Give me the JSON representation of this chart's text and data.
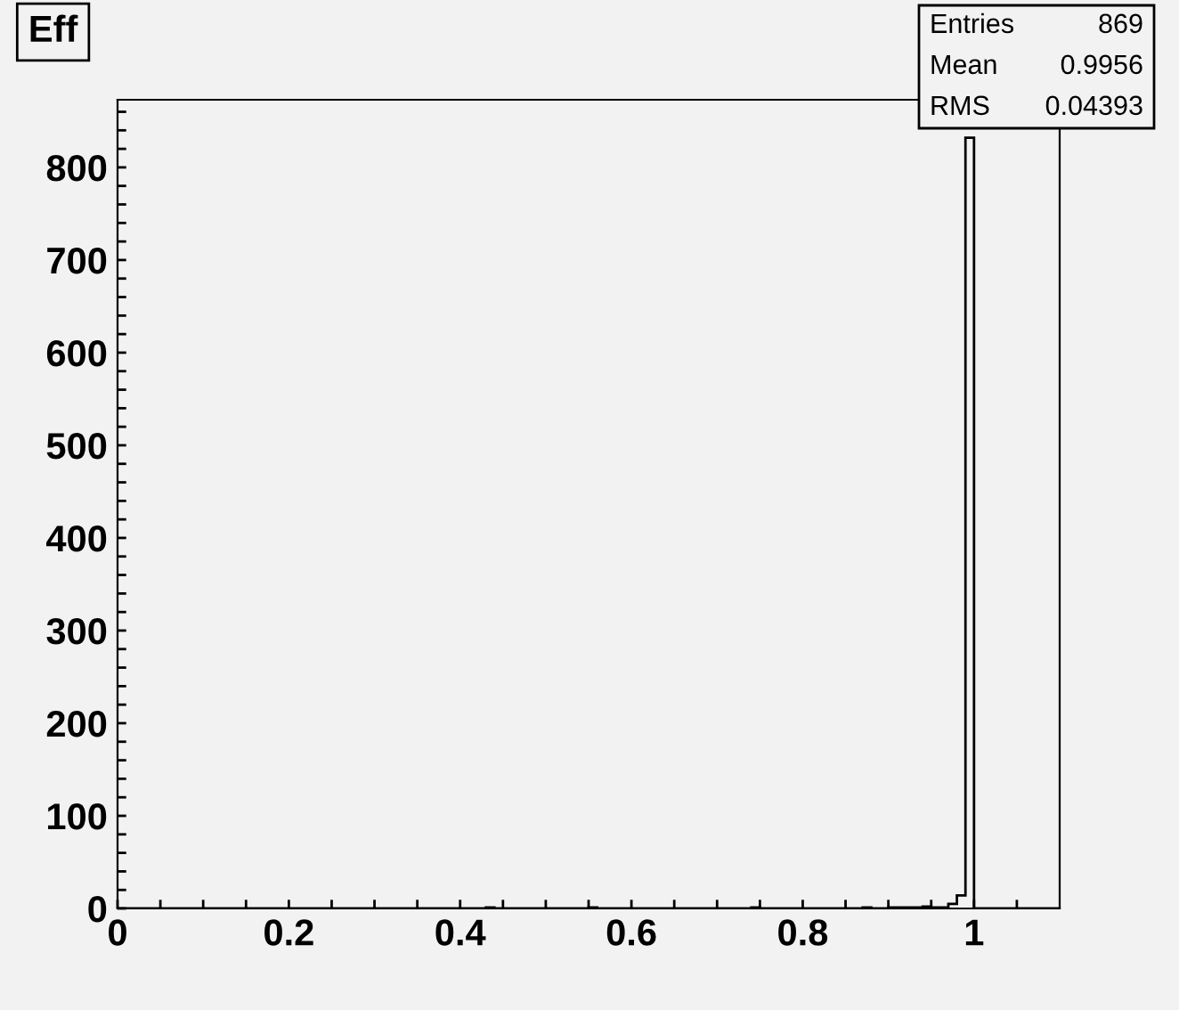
{
  "chart_data": {
    "type": "histogram",
    "title": "Eff",
    "bins": [
      0,
      0.01,
      0.02,
      0.03,
      0.04,
      0.05,
      0.06,
      0.07,
      0.08,
      0.09,
      0.1,
      0.11,
      0.12,
      0.13,
      0.14,
      0.15,
      0.16,
      0.17,
      0.18,
      0.19,
      0.2,
      0.21,
      0.22,
      0.23,
      0.24,
      0.25,
      0.26,
      0.27,
      0.28,
      0.29,
      0.3,
      0.31,
      0.32,
      0.33,
      0.34,
      0.35,
      0.36,
      0.37,
      0.38,
      0.39,
      0.4,
      0.41,
      0.42,
      0.43,
      0.44,
      0.45,
      0.46,
      0.47,
      0.48,
      0.49,
      0.5,
      0.51,
      0.52,
      0.53,
      0.54,
      0.55,
      0.56,
      0.57,
      0.58,
      0.59,
      0.6,
      0.61,
      0.62,
      0.63,
      0.64,
      0.65,
      0.66,
      0.67,
      0.68,
      0.69,
      0.7,
      0.71,
      0.72,
      0.73,
      0.74,
      0.75,
      0.76,
      0.77,
      0.78,
      0.79,
      0.8,
      0.81,
      0.82,
      0.83,
      0.84,
      0.85,
      0.86,
      0.87,
      0.88,
      0.89,
      0.9,
      0.91,
      0.92,
      0.93,
      0.94,
      0.95,
      0.96,
      0.97,
      0.98,
      0.99,
      1.0,
      1.01,
      1.02,
      1.03,
      1.04,
      1.05,
      1.06,
      1.07,
      1.08,
      1.09,
      1.1
    ],
    "values": [
      0,
      0,
      0,
      0,
      0,
      0,
      0,
      0,
      0,
      0,
      0,
      0,
      0,
      0,
      0,
      0,
      0,
      0,
      0,
      0,
      0,
      0,
      0,
      0,
      0,
      0,
      0,
      0,
      0,
      0,
      0,
      0,
      0,
      0,
      0,
      0,
      0,
      0,
      0,
      0,
      0,
      0,
      0,
      1,
      0,
      0,
      0,
      0,
      0,
      0,
      0,
      0,
      0,
      0,
      0,
      1,
      0,
      0,
      0,
      0,
      0,
      0,
      0,
      0,
      0,
      0,
      0,
      0,
      0,
      0,
      0,
      0,
      0,
      0,
      1,
      0,
      0,
      0,
      0,
      0,
      0,
      0,
      0,
      0,
      0,
      0,
      0,
      1,
      0,
      0,
      1,
      1,
      1,
      1,
      2,
      1,
      1,
      5,
      14,
      832,
      0,
      0,
      0,
      0,
      0,
      0,
      0,
      0,
      0,
      0
    ],
    "color": "#000000",
    "xlim": [
      0,
      1.1
    ],
    "xticks": [
      0,
      {
        "value": 0.05,
        "label": null
      },
      {
        "value": 0.1,
        "label": null
      },
      {
        "value": 0.15,
        "label": null
      },
      0.2,
      {
        "value": 0.25,
        "label": null
      },
      {
        "value": 0.3,
        "label": null
      },
      {
        "value": 0.35,
        "label": null
      },
      0.4,
      {
        "value": 0.45,
        "label": null
      },
      {
        "value": 0.5,
        "label": null
      },
      {
        "value": 0.55,
        "label": null
      },
      0.6,
      {
        "value": 0.65,
        "label": null
      },
      {
        "value": 0.7,
        "label": null
      },
      {
        "value": 0.75,
        "label": null
      },
      0.8,
      {
        "value": 0.85,
        "label": null
      },
      {
        "value": 0.9,
        "label": null
      },
      {
        "value": 0.95,
        "label": null
      },
      1,
      {
        "value": 1.05,
        "label": null
      }
    ],
    "ylim": [
      0,
      873
    ],
    "yticks": [
      0,
      {
        "value": 20,
        "label": null
      },
      {
        "value": 40,
        "label": null
      },
      {
        "value": 60,
        "label": null
      },
      {
        "value": 80,
        "label": null
      },
      100,
      {
        "value": 120,
        "label": null
      },
      {
        "value": 140,
        "label": null
      },
      {
        "value": 160,
        "label": null
      },
      {
        "value": 180,
        "label": null
      },
      200,
      {
        "value": 220,
        "label": null
      },
      {
        "value": 240,
        "label": null
      },
      {
        "value": 260,
        "label": null
      },
      {
        "value": 280,
        "label": null
      },
      300,
      {
        "value": 320,
        "label": null
      },
      {
        "value": 340,
        "label": null
      },
      {
        "value": 360,
        "label": null
      },
      {
        "value": 380,
        "label": null
      },
      400,
      {
        "value": 420,
        "label": null
      },
      {
        "value": 440,
        "label": null
      },
      {
        "value": 460,
        "label": null
      },
      {
        "value": 480,
        "label": null
      },
      500,
      {
        "value": 520,
        "label": null
      },
      {
        "value": 540,
        "label": null
      },
      {
        "value": 560,
        "label": null
      },
      {
        "value": 580,
        "label": null
      },
      600,
      {
        "value": 620,
        "label": null
      },
      {
        "value": 640,
        "label": null
      },
      {
        "value": 660,
        "label": null
      },
      {
        "value": 680,
        "label": null
      },
      700,
      {
        "value": 720,
        "label": null
      },
      {
        "value": 740,
        "label": null
      },
      {
        "value": 760,
        "label": null
      },
      {
        "value": 780,
        "label": null
      },
      800,
      {
        "value": 820,
        "label": null
      },
      {
        "value": 840,
        "label": null
      },
      {
        "value": 860,
        "label": null
      }
    ],
    "grid": false,
    "legend": false,
    "annotations": [
      "Entries",
      "869",
      "Mean",
      "0.9956",
      "RMS",
      "0.04393"
    ]
  }
}
